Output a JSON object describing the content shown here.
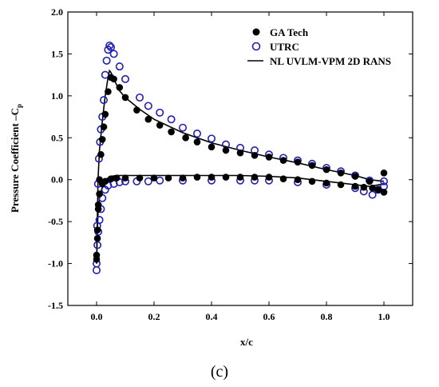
{
  "chart_data": {
    "type": "scatter",
    "caption": "(c)",
    "xlabel": "x/c",
    "ylabel": "Pressure Coefficient –C",
    "ylabel_sub": "p",
    "xlim": [
      -0.1,
      1.1
    ],
    "ylim": [
      -1.5,
      2.0
    ],
    "xticks": [
      0.0,
      0.2,
      0.4,
      0.6,
      0.8,
      1.0
    ],
    "xtick_labels": [
      "0.0",
      "0.2",
      "0.4",
      "0.6",
      "0.8",
      "1.0"
    ],
    "yticks": [
      -1.5,
      -1.0,
      -0.5,
      0.0,
      0.5,
      1.0,
      1.5,
      2.0
    ],
    "ytick_labels": [
      "-1.5",
      "-1.0",
      "-0.5",
      "0.0",
      "0.5",
      "1.0",
      "1.5",
      "2.0"
    ],
    "grid": false,
    "legend_position": "top-right",
    "series": [
      {
        "name": "GA Tech",
        "marker": "filled-circle",
        "color": "#000000",
        "x": [
          0.0,
          0.003,
          0.006,
          0.01,
          0.015,
          0.02,
          0.025,
          0.03,
          0.04,
          0.05,
          0.06,
          0.08,
          0.1,
          0.14,
          0.18,
          0.22,
          0.26,
          0.31,
          0.35,
          0.4,
          0.45,
          0.5,
          0.55,
          0.6,
          0.65,
          0.7,
          0.75,
          0.8,
          0.85,
          0.9,
          0.95,
          1.0,
          0.0,
          0.003,
          0.006,
          0.01,
          0.02,
          0.03,
          0.05,
          0.07,
          0.1,
          0.15,
          0.2,
          0.25,
          0.3,
          0.35,
          0.4,
          0.45,
          0.5,
          0.55,
          0.6,
          0.65,
          0.7,
          0.75,
          0.8,
          0.85,
          0.9,
          0.93,
          0.96,
          0.98,
          1.0
        ],
        "y": [
          -0.95,
          -0.7,
          -0.3,
          0.0,
          0.3,
          0.48,
          0.63,
          0.78,
          1.05,
          1.22,
          1.2,
          1.1,
          0.98,
          0.83,
          0.72,
          0.65,
          0.57,
          0.5,
          0.45,
          0.39,
          0.35,
          0.32,
          0.29,
          0.27,
          0.23,
          0.21,
          0.17,
          0.12,
          0.08,
          0.04,
          -0.02,
          0.08,
          -0.9,
          -0.6,
          -0.35,
          -0.17,
          -0.05,
          -0.02,
          0.01,
          0.02,
          0.02,
          0.02,
          0.02,
          0.02,
          0.02,
          0.03,
          0.03,
          0.03,
          0.03,
          0.03,
          0.03,
          0.01,
          0.0,
          -0.02,
          -0.04,
          -0.06,
          -0.08,
          -0.09,
          -0.1,
          -0.12,
          -0.15
        ]
      },
      {
        "name": "UTRC",
        "marker": "open-circle",
        "color": "#1f1fb4",
        "x": [
          0.0,
          0.002,
          0.005,
          0.008,
          0.012,
          0.015,
          0.02,
          0.025,
          0.03,
          0.035,
          0.04,
          0.045,
          0.05,
          0.06,
          0.08,
          0.1,
          0.15,
          0.18,
          0.22,
          0.26,
          0.3,
          0.35,
          0.4,
          0.45,
          0.5,
          0.55,
          0.6,
          0.65,
          0.7,
          0.75,
          0.8,
          0.85,
          0.9,
          0.95,
          1.0,
          0.0,
          0.003,
          0.006,
          0.01,
          0.015,
          0.02,
          0.03,
          0.04,
          0.06,
          0.08,
          0.1,
          0.14,
          0.18,
          0.22,
          0.3,
          0.4,
          0.5,
          0.55,
          0.6,
          0.7,
          0.8,
          0.9,
          0.93,
          0.96,
          0.98,
          1.0
        ],
        "y": [
          -1.08,
          -0.55,
          -0.05,
          0.25,
          0.45,
          0.6,
          0.75,
          0.95,
          1.25,
          1.42,
          1.55,
          1.6,
          1.58,
          1.5,
          1.35,
          1.2,
          0.98,
          0.88,
          0.8,
          0.72,
          0.62,
          0.55,
          0.49,
          0.42,
          0.38,
          0.35,
          0.3,
          0.26,
          0.23,
          0.19,
          0.14,
          0.1,
          0.05,
          -0.01,
          -0.02,
          -1.0,
          -0.78,
          -0.62,
          -0.48,
          -0.35,
          -0.22,
          -0.12,
          -0.07,
          -0.05,
          -0.03,
          -0.02,
          -0.02,
          -0.02,
          -0.01,
          -0.01,
          -0.01,
          -0.01,
          -0.01,
          -0.01,
          -0.03,
          -0.06,
          -0.1,
          -0.14,
          -0.18,
          -0.12,
          -0.08
        ]
      },
      {
        "name": "NL UVLM-VPM 2D RANS",
        "marker": "line",
        "color": "#000000",
        "x": [
          0.0,
          0.002,
          0.005,
          0.01,
          0.02,
          0.03,
          0.04,
          0.045,
          0.05,
          0.06,
          0.08,
          0.1,
          0.15,
          0.2,
          0.3,
          0.4,
          0.5,
          0.6,
          0.7,
          0.8,
          0.9,
          0.95,
          1.0
        ],
        "y": [
          -1.0,
          -0.6,
          0.0,
          0.35,
          0.7,
          1.0,
          1.22,
          1.3,
          1.28,
          1.2,
          1.06,
          0.98,
          0.84,
          0.72,
          0.56,
          0.44,
          0.35,
          0.27,
          0.2,
          0.12,
          0.05,
          0.0,
          -0.02
        ],
        "lower_x": [
          0.0,
          0.002,
          0.005,
          0.01,
          0.02,
          0.03,
          0.05,
          0.07,
          0.1,
          0.2,
          0.3,
          0.4,
          0.5,
          0.6,
          0.7,
          0.8,
          0.9,
          0.95,
          1.0
        ],
        "lower_y": [
          -1.0,
          -0.7,
          -0.4,
          -0.22,
          -0.08,
          0.0,
          0.04,
          0.05,
          0.05,
          0.05,
          0.05,
          0.05,
          0.05,
          0.04,
          0.02,
          -0.02,
          -0.06,
          -0.08,
          -0.05
        ]
      }
    ]
  }
}
